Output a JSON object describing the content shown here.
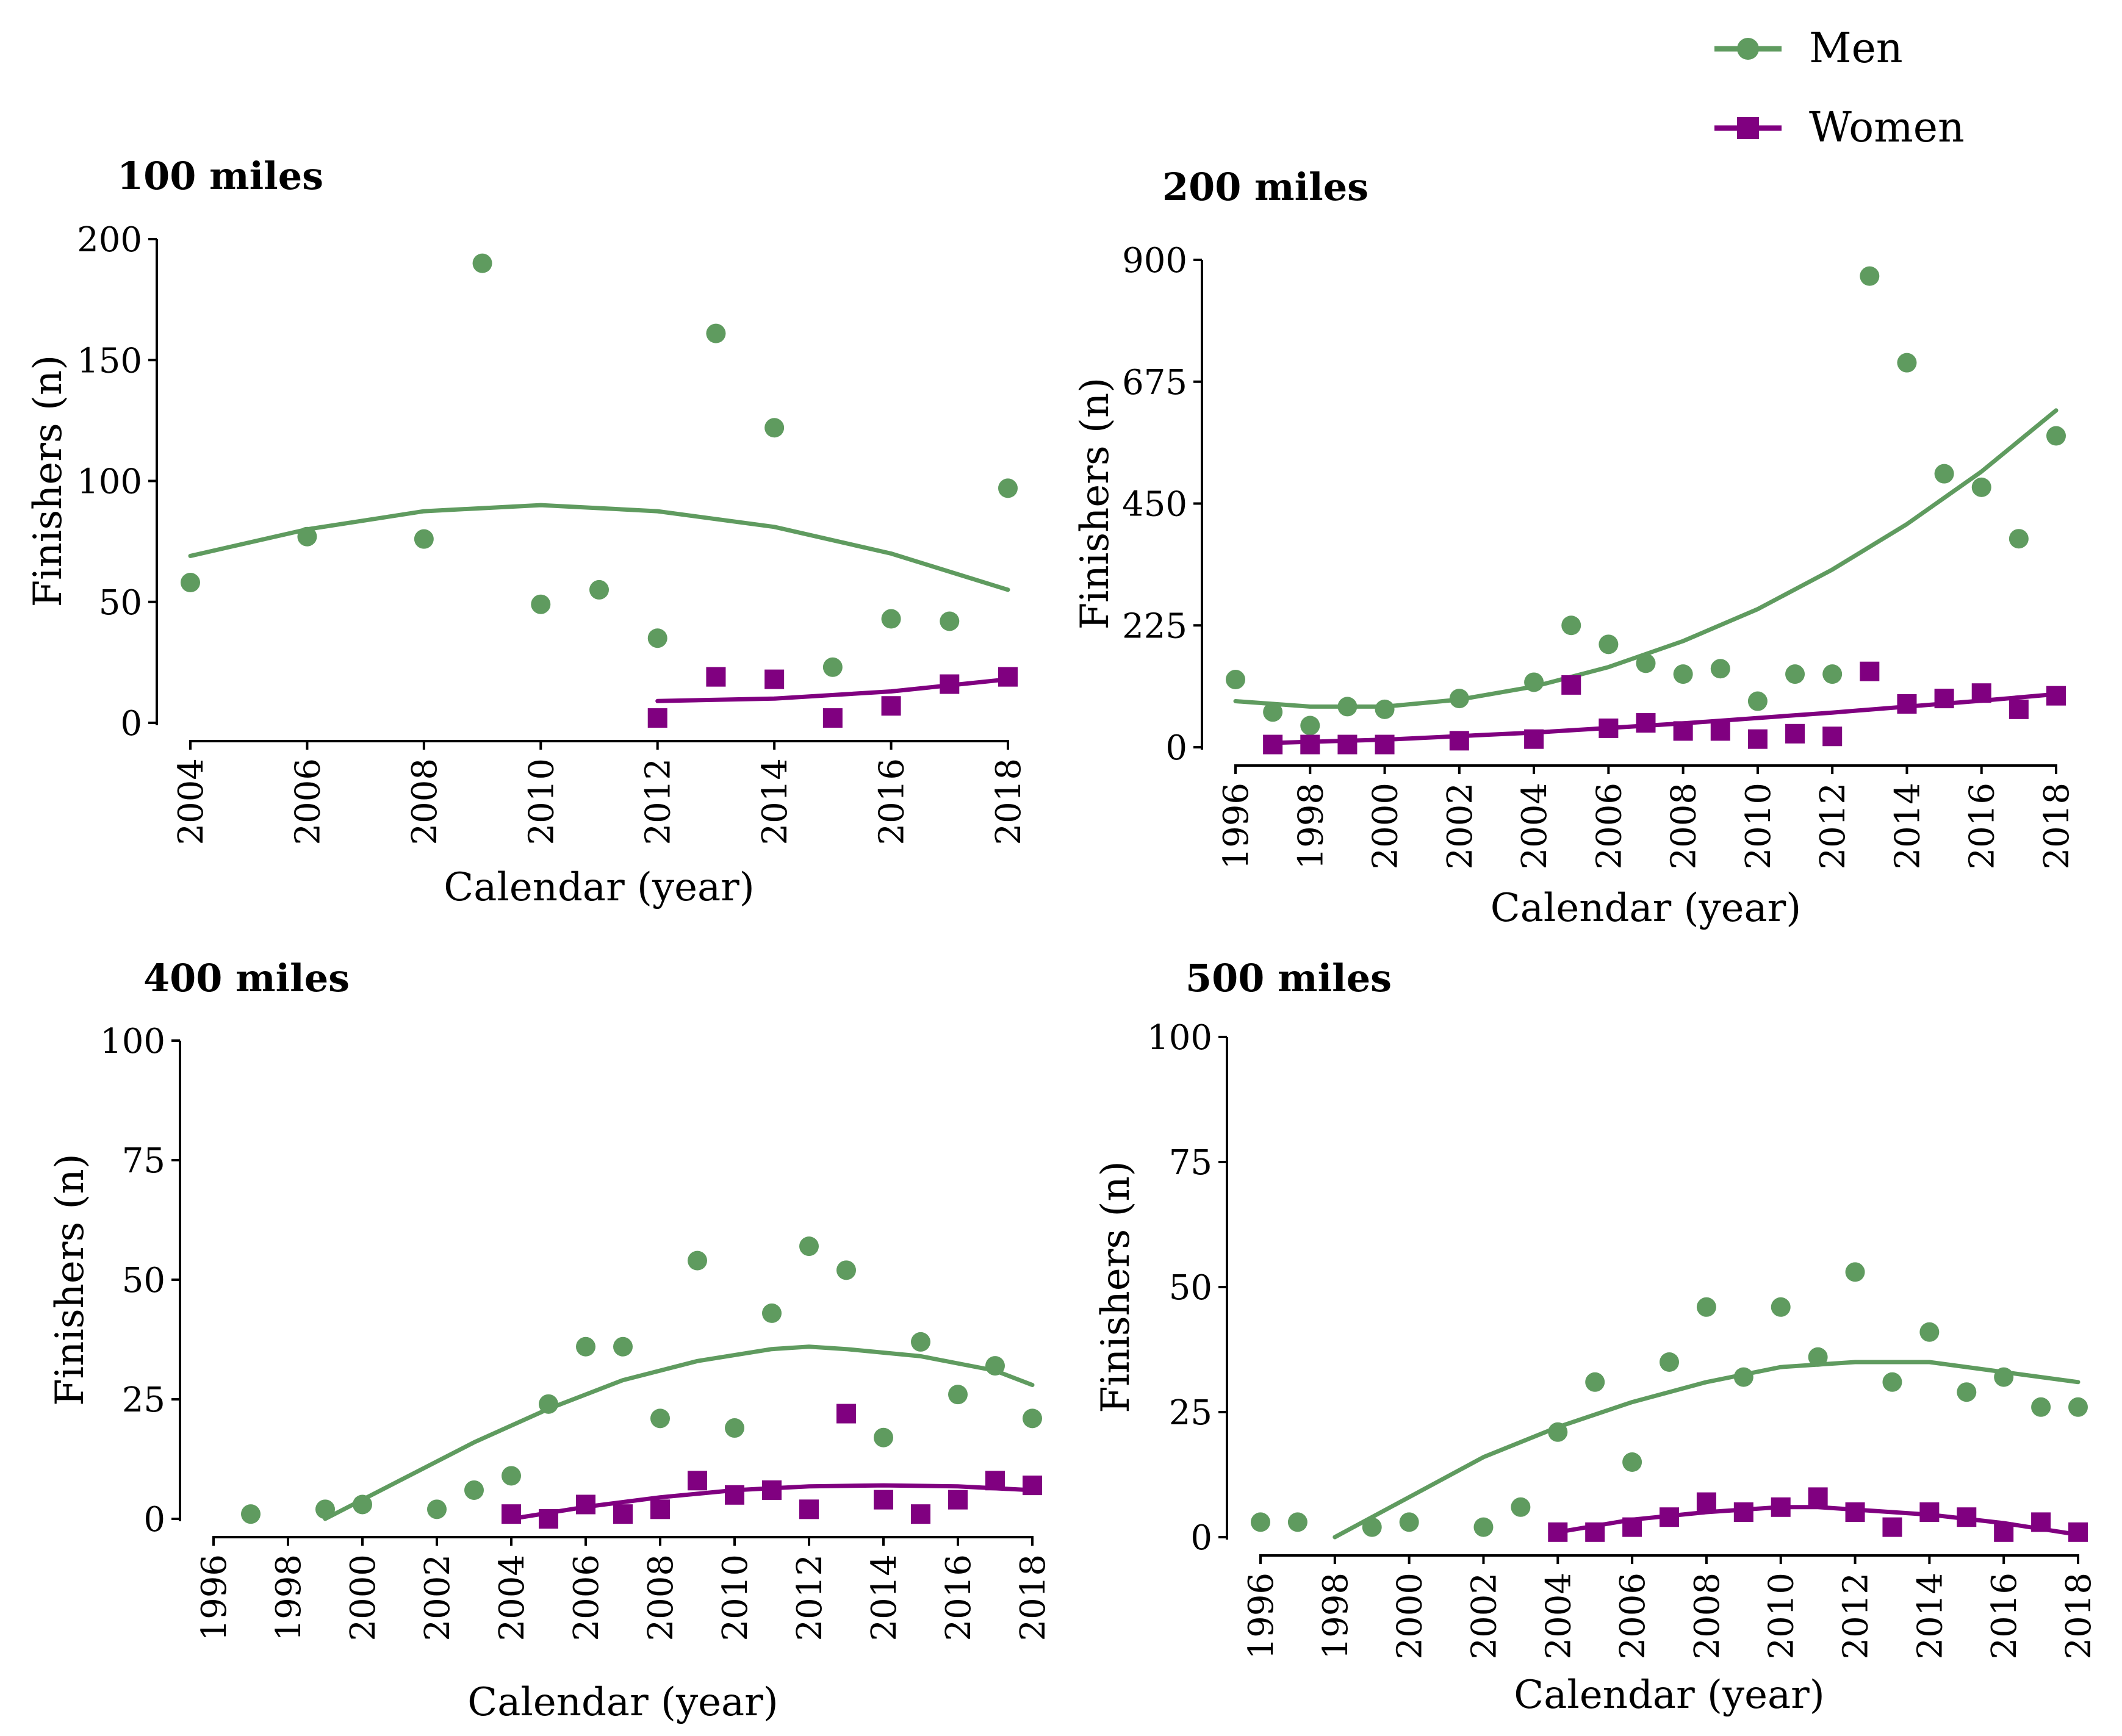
{
  "legend": {
    "men_label": "Men",
    "women_label": "Women"
  },
  "colors": {
    "men": "#5f9b5f",
    "women": "#800080"
  },
  "chart_data": [
    {
      "type": "scatter",
      "title": "100 miles",
      "xlabel": "Calendar (year)",
      "ylabel": "Finishers (n)",
      "xlim": [
        2004,
        2018
      ],
      "ylim": [
        0,
        200
      ],
      "xticks": [
        2004,
        2006,
        2008,
        2010,
        2012,
        2014,
        2016,
        2018
      ],
      "yticks": [
        0,
        50,
        100,
        150,
        200
      ],
      "series": [
        {
          "name": "Men",
          "x": [
            2004,
            2006,
            2008,
            2009,
            2010,
            2011,
            2012,
            2013,
            2014,
            2015,
            2016,
            2017,
            2018
          ],
          "y": [
            58,
            77,
            76,
            190,
            49,
            55,
            35,
            161,
            122,
            23,
            43,
            42,
            97
          ],
          "trend": [
            [
              2004,
              69
            ],
            [
              2006,
              80
            ],
            [
              2008,
              87.5
            ],
            [
              2010,
              90
            ],
            [
              2012,
              87.5
            ],
            [
              2014,
              81
            ],
            [
              2016,
              70
            ],
            [
              2018,
              55
            ]
          ]
        },
        {
          "name": "Women",
          "x": [
            2012,
            2013,
            2014,
            2015,
            2016,
            2017,
            2018
          ],
          "y": [
            2,
            19,
            18,
            2,
            7,
            16,
            19
          ],
          "trend": [
            [
              2012,
              9
            ],
            [
              2014,
              10
            ],
            [
              2016,
              13
            ],
            [
              2018,
              18
            ]
          ]
        }
      ]
    },
    {
      "type": "scatter",
      "title": "200 miles",
      "xlabel": "Calendar (year)",
      "ylabel": "Finishers (n)",
      "xlim": [
        1996,
        2018
      ],
      "ylim": [
        0,
        900
      ],
      "xticks": [
        1996,
        1998,
        2000,
        2002,
        2004,
        2006,
        2008,
        2010,
        2012,
        2014,
        2016,
        2018
      ],
      "yticks": [
        0,
        225,
        450,
        675,
        900
      ],
      "series": [
        {
          "name": "Men",
          "x": [
            1996,
            1997,
            1998,
            1999,
            2000,
            2002,
            2004,
            2005,
            2006,
            2007,
            2008,
            2009,
            2010,
            2011,
            2012,
            2013,
            2014,
            2015,
            2016,
            2017,
            2018
          ],
          "y": [
            125,
            65,
            40,
            75,
            70,
            90,
            120,
            225,
            190,
            155,
            135,
            145,
            85,
            135,
            135,
            870,
            710,
            505,
            480,
            385,
            575
          ],
          "trend": [
            [
              1996,
              85
            ],
            [
              1998,
              75
            ],
            [
              2000,
              75
            ],
            [
              2002,
              88
            ],
            [
              2004,
              112
            ],
            [
              2006,
              148
            ],
            [
              2008,
              196
            ],
            [
              2010,
              255
            ],
            [
              2012,
              328
            ],
            [
              2014,
              412
            ],
            [
              2016,
              509
            ],
            [
              2018,
              622
            ]
          ]
        },
        {
          "name": "Women",
          "x": [
            1997,
            1998,
            1999,
            2000,
            2002,
            2004,
            2005,
            2006,
            2007,
            2008,
            2009,
            2010,
            2011,
            2012,
            2013,
            2014,
            2015,
            2016,
            2017,
            2018
          ],
          "y": [
            5,
            5,
            5,
            5,
            12,
            15,
            115,
            35,
            45,
            30,
            30,
            15,
            25,
            20,
            140,
            80,
            90,
            100,
            70,
            95
          ],
          "trend": [
            [
              1997,
              8
            ],
            [
              2000,
              14
            ],
            [
              2004,
              27
            ],
            [
              2008,
              44
            ],
            [
              2012,
              64
            ],
            [
              2016,
              86
            ],
            [
              2018,
              98
            ]
          ]
        }
      ]
    },
    {
      "type": "scatter",
      "title": "400 miles",
      "xlabel": "Calendar (year)",
      "ylabel": "Finishers (n)",
      "xlim": [
        1996,
        2018
      ],
      "ylim": [
        0,
        100
      ],
      "xticks": [
        1996,
        1998,
        2000,
        2002,
        2004,
        2006,
        2008,
        2010,
        2012,
        2014,
        2016,
        2018
      ],
      "yticks": [
        0,
        25,
        50,
        75,
        100
      ],
      "series": [
        {
          "name": "Men",
          "x": [
            1997,
            1999,
            2000,
            2002,
            2003,
            2004,
            2005,
            2006,
            2007,
            2008,
            2009,
            2010,
            2011,
            2012,
            2013,
            2014,
            2015,
            2016,
            2017,
            2018
          ],
          "y": [
            1,
            2,
            3,
            2,
            6,
            9,
            24,
            36,
            36,
            21,
            54,
            19,
            43,
            57,
            52,
            17,
            37,
            26,
            32,
            21
          ],
          "trend": [
            [
              1999,
              0
            ],
            [
              2001,
              8
            ],
            [
              2003,
              16
            ],
            [
              2005,
              23
            ],
            [
              2007,
              29
            ],
            [
              2009,
              33
            ],
            [
              2011,
              35.5
            ],
            [
              2012,
              36
            ],
            [
              2013,
              35.5
            ],
            [
              2015,
              34
            ],
            [
              2017,
              31
            ],
            [
              2018,
              28
            ]
          ]
        },
        {
          "name": "Women",
          "x": [
            2004,
            2005,
            2006,
            2007,
            2008,
            2009,
            2010,
            2011,
            2012,
            2013,
            2014,
            2015,
            2016,
            2017,
            2018
          ],
          "y": [
            1,
            0,
            3,
            1,
            2,
            8,
            5,
            6,
            2,
            22,
            4,
            1,
            4,
            8,
            7
          ],
          "trend": [
            [
              2004,
              0
            ],
            [
              2006,
              2.5
            ],
            [
              2008,
              4.5
            ],
            [
              2010,
              6
            ],
            [
              2012,
              6.8
            ],
            [
              2014,
              7
            ],
            [
              2016,
              6.8
            ],
            [
              2018,
              6
            ]
          ]
        }
      ]
    },
    {
      "type": "scatter",
      "title": "500 miles",
      "xlabel": "Calendar (year)",
      "ylabel": "Finishers (n)",
      "xlim": [
        1996,
        2018
      ],
      "ylim": [
        0,
        100
      ],
      "xticks": [
        1996,
        1998,
        2000,
        2002,
        2004,
        2006,
        2008,
        2010,
        2012,
        2014,
        2016,
        2018
      ],
      "yticks": [
        0,
        25,
        50,
        75,
        100
      ],
      "series": [
        {
          "name": "Men",
          "x": [
            1996,
            1997,
            1999,
            2000,
            2002,
            2003,
            2004,
            2005,
            2006,
            2007,
            2008,
            2009,
            2010,
            2011,
            2012,
            2013,
            2014,
            2015,
            2016,
            2017,
            2018
          ],
          "y": [
            3,
            3,
            2,
            3,
            2,
            6,
            21,
            31,
            15,
            35,
            46,
            32,
            46,
            36,
            53,
            31,
            41,
            29,
            32,
            26,
            26
          ],
          "trend": [
            [
              1998,
              0
            ],
            [
              2000,
              8
            ],
            [
              2002,
              16
            ],
            [
              2004,
              22
            ],
            [
              2006,
              27
            ],
            [
              2008,
              31
            ],
            [
              2010,
              34
            ],
            [
              2012,
              35
            ],
            [
              2014,
              35
            ],
            [
              2016,
              33
            ],
            [
              2018,
              31
            ]
          ]
        },
        {
          "name": "Women",
          "x": [
            2004,
            2005,
            2006,
            2007,
            2008,
            2009,
            2010,
            2011,
            2012,
            2013,
            2014,
            2015,
            2016,
            2017,
            2018
          ],
          "y": [
            1,
            1,
            2,
            4,
            7,
            5,
            6,
            8,
            5,
            2,
            5,
            4,
            1,
            3,
            1
          ],
          "trend": [
            [
              2004,
              1
            ],
            [
              2006,
              3.5
            ],
            [
              2008,
              5
            ],
            [
              2010,
              6
            ],
            [
              2011,
              6
            ],
            [
              2012,
              5.5
            ],
            [
              2014,
              4.5
            ],
            [
              2016,
              2.8
            ],
            [
              2018,
              0.5
            ]
          ]
        }
      ]
    }
  ]
}
